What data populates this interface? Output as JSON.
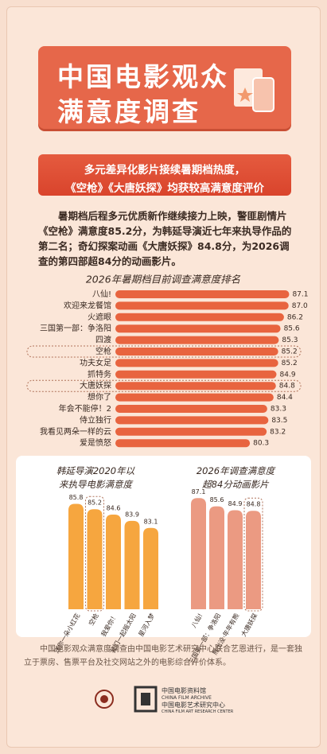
{
  "header": {
    "title_lines": [
      "中国电影观众",
      "满意度调查"
    ]
  },
  "subtitle_lines": [
    "多元差异化影片接续暑期档热度，",
    "《空枪》《大唐妖探》均获较高满意度评价"
  ],
  "intro": "暑期档后程多元优质新作继续接力上映，警匪剧情片《空枪》满意度85.2分，为韩延导演近七年来执导作品的第二名；奇幻探案动画《大唐妖探》84.8分，为2026调查的第四部超84分的动画影片。",
  "chart_data": [
    {
      "type": "bar",
      "orientation": "horizontal",
      "title": "2026年暑期档目前调查满意度排名",
      "categories": [
        "八仙!",
        "欢迎来龙餐馆",
        "火遮眼",
        "三国第一部：争洛阳",
        "四渡",
        "空枪",
        "功夫女足",
        "抓特务",
        "大唐妖探",
        "想你了",
        "年会不能停！2",
        "侍立独行",
        "我看见两朵一样的云",
        "爱是愤怒"
      ],
      "values": [
        87.1,
        87.0,
        86.2,
        85.6,
        85.3,
        85.2,
        85.2,
        84.9,
        84.8,
        84.4,
        83.3,
        83.5,
        83.2,
        80.3
      ],
      "value_labels": [
        "87.1",
        "87.0",
        "86.2",
        "85.6",
        "85.3",
        "85.2",
        "85.2",
        "84.9",
        "84.8",
        "84.4",
        "83.3",
        "83.5",
        "83.2",
        "80.3"
      ],
      "xlim": [
        57,
        88
      ],
      "highlight": [
        5,
        8
      ],
      "color": "#e8643f"
    },
    {
      "type": "bar",
      "orientation": "vertical",
      "title": "韩延导演2020年以来执导电影满意度",
      "categories": [
        "送你一朵小红花",
        "空枪",
        "我爱你！",
        "我们一起摇太阳",
        "星河入梦"
      ],
      "values": [
        85.8,
        85.2,
        84.6,
        83.9,
        83.1
      ],
      "ylim": [
        74,
        87
      ],
      "highlight": [
        1
      ],
      "color": "#f6a63f"
    },
    {
      "type": "bar",
      "orientation": "vertical",
      "title": "2026年调查满意度超84分动画影片",
      "categories": [
        "八仙!",
        "三国第一部：争洛阳",
        "熊出没·年年有熊",
        "大唐妖探"
      ],
      "values": [
        87.1,
        85.6,
        84.9,
        84.8
      ],
      "ylim": [
        67,
        88
      ],
      "highlight": [
        3
      ],
      "color": "#eb9a82"
    }
  ],
  "footer": {
    "note": "中国电影观众满意度调查由中国电影艺术研究中心联合艺恩进行，是一套独立于票房、售票平台及社交网站之外的电影综合评价体系。",
    "org_cn": "中国电影资料馆",
    "org_en": "CHINA FILM ARCHIVE",
    "center_cn": "中国电影艺术研究中心",
    "center_en": "CHINA FILM ART RESEARCH CENTER"
  }
}
